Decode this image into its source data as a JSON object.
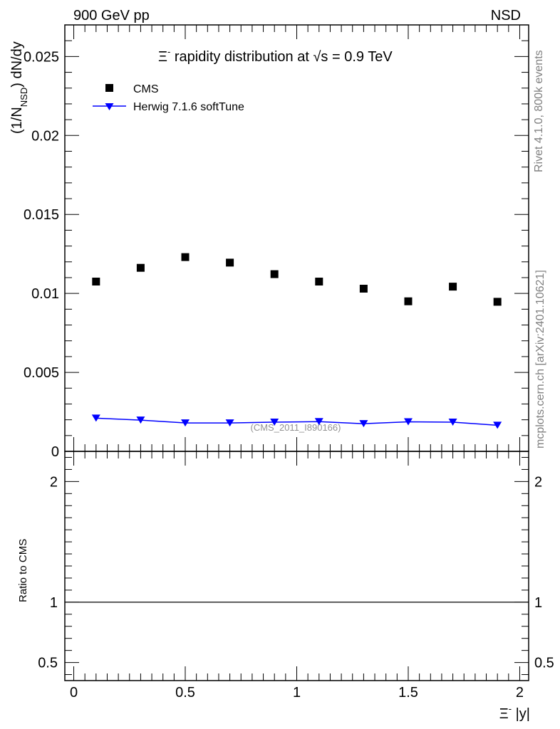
{
  "header": {
    "left": "900 GeV pp",
    "right": "NSD"
  },
  "side_labels": {
    "rivet": "Rivet 4.1.0,  800k events",
    "mcplots": "mcplots.cern.ch [arXiv:2401.10621]"
  },
  "chart_data": [
    {
      "type": "scatter",
      "title_parts": {
        "prefix": "Ξ",
        "sup": "-",
        "middle": " rapidity distribution at ",
        "root": "√s",
        "suffix": " = 0.9 TeV"
      },
      "ylabel_parts": {
        "a": "(1/N",
        "sub": "NSD",
        "b": ") dN/dy"
      },
      "watermark": "(CMS_2011_I890166)",
      "xlim": [
        -0.04,
        2.04
      ],
      "ylim": [
        0,
        0.027
      ],
      "yticks": [
        0,
        0.005,
        0.01,
        0.015,
        0.02,
        0.025
      ],
      "ytick_labels": [
        "0",
        "0.005",
        "0.01",
        "0.015",
        "0.02",
        "0.025"
      ],
      "x": [
        0.1,
        0.3,
        0.5,
        0.7,
        0.9,
        1.1,
        1.3,
        1.5,
        1.7,
        1.9
      ],
      "legend_position": "top-left",
      "series": [
        {
          "name": "CMS",
          "marker": "square",
          "color": "#000000",
          "values": [
            0.01075,
            0.01162,
            0.0123,
            0.01195,
            0.01122,
            0.01075,
            0.0103,
            0.0095,
            0.01043,
            0.00947
          ]
        },
        {
          "name": "Herwig 7.1.6 softTune",
          "marker": "triangle-down",
          "color": "#0000ff",
          "line": true,
          "values": [
            0.0021,
            0.00198,
            0.0018,
            0.0018,
            0.00185,
            0.00188,
            0.00175,
            0.00187,
            0.00185,
            0.00165
          ]
        }
      ]
    },
    {
      "type": "line",
      "ylabel": "Ratio to CMS",
      "xlabel_parts": {
        "a": "Ξ",
        "sup": "-",
        "b": " |y|"
      },
      "xlim": [
        -0.04,
        2.04
      ],
      "ylim": [
        0.35,
        2.25
      ],
      "yticks": [
        0.5,
        1,
        2
      ],
      "ytick_labels": [
        "0.5",
        "1",
        "2"
      ],
      "xticks": [
        0,
        0.5,
        1,
        1.5,
        2
      ],
      "xtick_labels": [
        "0",
        "0.5",
        "1",
        "1.5",
        "2"
      ],
      "reference_line": 1
    }
  ]
}
